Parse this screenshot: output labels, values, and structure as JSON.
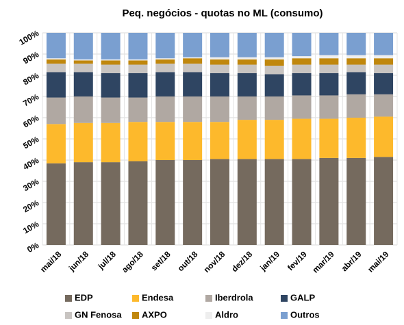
{
  "chart_data": {
    "type": "stacked_bar",
    "title": "Peq. negócios - quotas no ML (consumo)",
    "categories": [
      "mai/18",
      "jun/18",
      "jul/18",
      "ago/18",
      "set/18",
      "out/18",
      "nov/18",
      "dez/18",
      "jan/19",
      "fev/19",
      "mar/19",
      "abr/19",
      "mai/19"
    ],
    "series": [
      {
        "name": "EDP",
        "color": "#756a5e",
        "values": [
          38.5,
          39,
          39,
          39.5,
          40,
          40,
          40.5,
          40.5,
          40.5,
          40.5,
          41,
          41,
          41.5
        ]
      },
      {
        "name": "Endesa",
        "color": "#fdb92c",
        "values": [
          18.5,
          18.5,
          18.5,
          18.5,
          18,
          18,
          17.5,
          18.5,
          18.5,
          19,
          18.5,
          19,
          19
        ]
      },
      {
        "name": "Iberdrola",
        "color": "#b0a8a2",
        "values": [
          12.5,
          12.5,
          12,
          11.5,
          12,
          12,
          12,
          11,
          11,
          11,
          11,
          11,
          10.5
        ]
      },
      {
        "name": "GALP",
        "color": "#2f4562",
        "values": [
          12,
          11.5,
          11.5,
          11.5,
          11.5,
          11.5,
          11,
          11,
          10.5,
          10.5,
          10.5,
          10.5,
          10
        ]
      },
      {
        "name": "GN Fenosa",
        "color": "#c8c4c1",
        "values": [
          4,
          4,
          4,
          4,
          4,
          4,
          4,
          4,
          4,
          4,
          4,
          3.5,
          4
        ]
      },
      {
        "name": "AXPO",
        "color": "#c0870d",
        "values": [
          2,
          1.5,
          2,
          2,
          2,
          2.5,
          2.5,
          2.5,
          3,
          3,
          3,
          3,
          3
        ]
      },
      {
        "name": "Aldro",
        "color": "#eeeeee",
        "values": [
          0.5,
          0.5,
          0.5,
          0.5,
          0.5,
          0.5,
          1,
          1,
          1,
          1,
          1.5,
          1.5,
          1.5
        ]
      },
      {
        "name": "Outros",
        "color": "#7a9fd0",
        "values": [
          12,
          12.5,
          12.5,
          12.5,
          12,
          11.5,
          11.5,
          11.5,
          11.5,
          11,
          10.5,
          10.5,
          10.5
        ]
      }
    ],
    "ylim": [
      0,
      100
    ],
    "yticks": [
      {
        "value": 0,
        "label": "0%"
      },
      {
        "value": 10,
        "label": "10%"
      },
      {
        "value": 20,
        "label": "20%"
      },
      {
        "value": 30,
        "label": "30%"
      },
      {
        "value": 40,
        "label": "40%"
      },
      {
        "value": 50,
        "label": "50%"
      },
      {
        "value": 60,
        "label": "60%"
      },
      {
        "value": 70,
        "label": "70%"
      },
      {
        "value": 80,
        "label": "80%"
      },
      {
        "value": 90,
        "label": "90%"
      },
      {
        "value": 100,
        "label": "100%"
      }
    ],
    "grid": true
  }
}
